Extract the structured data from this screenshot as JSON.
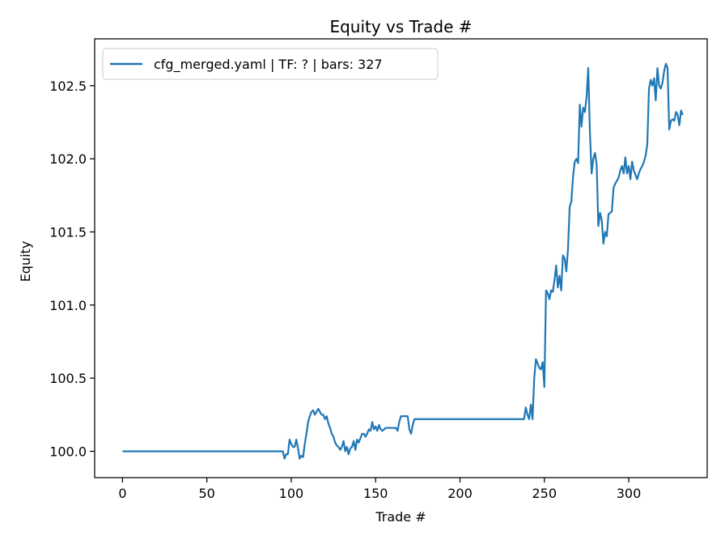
{
  "chart_data": {
    "type": "line",
    "title": "Equity vs Trade #",
    "xlabel": "Trade #",
    "ylabel": "Equity",
    "xlim": [
      -16.5,
      346.5
    ],
    "ylim": [
      99.82,
      102.82
    ],
    "xticks": [
      0,
      50,
      100,
      150,
      200,
      250,
      300
    ],
    "yticks": [
      100.0,
      100.5,
      101.0,
      101.5,
      102.0,
      102.5
    ],
    "ytick_labels": [
      "100.0",
      "100.5",
      "101.0",
      "101.5",
      "102.0",
      "102.5"
    ],
    "grid": false,
    "legend_position": "top-left",
    "series": [
      {
        "name": "cfg_merged.yaml | TF: ? | bars: 327",
        "color": "#1f77b4",
        "points": [
          [
            0,
            100.0
          ],
          [
            95,
            100.0
          ],
          [
            96,
            99.95
          ],
          [
            97,
            99.98
          ],
          [
            98,
            99.98
          ],
          [
            99,
            100.08
          ],
          [
            100,
            100.05
          ],
          [
            101,
            100.03
          ],
          [
            102,
            100.03
          ],
          [
            103,
            100.08
          ],
          [
            104,
            100.02
          ],
          [
            105,
            99.95
          ],
          [
            106,
            99.97
          ],
          [
            107,
            99.96
          ],
          [
            108,
            100.05
          ],
          [
            109,
            100.12
          ],
          [
            110,
            100.2
          ],
          [
            111,
            100.24
          ],
          [
            112,
            100.27
          ],
          [
            113,
            100.28
          ],
          [
            114,
            100.25
          ],
          [
            115,
            100.27
          ],
          [
            116,
            100.29
          ],
          [
            117,
            100.27
          ],
          [
            118,
            100.25
          ],
          [
            119,
            100.25
          ],
          [
            120,
            100.22
          ],
          [
            121,
            100.24
          ],
          [
            122,
            100.19
          ],
          [
            123,
            100.16
          ],
          [
            124,
            100.12
          ],
          [
            125,
            100.1
          ],
          [
            126,
            100.06
          ],
          [
            127,
            100.04
          ],
          [
            128,
            100.03
          ],
          [
            129,
            100.01
          ],
          [
            130,
            100.03
          ],
          [
            131,
            100.07
          ],
          [
            132,
            100.0
          ],
          [
            133,
            100.03
          ],
          [
            134,
            99.98
          ],
          [
            135,
            100.02
          ],
          [
            136,
            100.03
          ],
          [
            137,
            100.07
          ],
          [
            138,
            100.01
          ],
          [
            139,
            100.08
          ],
          [
            140,
            100.06
          ],
          [
            141,
            100.09
          ],
          [
            142,
            100.12
          ],
          [
            143,
            100.12
          ],
          [
            144,
            100.1
          ],
          [
            145,
            100.12
          ],
          [
            146,
            100.15
          ],
          [
            147,
            100.14
          ],
          [
            148,
            100.2
          ],
          [
            149,
            100.15
          ],
          [
            150,
            100.17
          ],
          [
            151,
            100.14
          ],
          [
            152,
            100.18
          ],
          [
            153,
            100.15
          ],
          [
            154,
            100.14
          ],
          [
            155,
            100.15
          ],
          [
            156,
            100.16
          ],
          [
            162,
            100.16
          ],
          [
            163,
            100.14
          ],
          [
            164,
            100.2
          ],
          [
            165,
            100.24
          ],
          [
            169,
            100.24
          ],
          [
            170,
            100.15
          ],
          [
            171,
            100.12
          ],
          [
            172,
            100.18
          ],
          [
            173,
            100.22
          ],
          [
            238,
            100.22
          ],
          [
            239,
            100.3
          ],
          [
            240,
            100.25
          ],
          [
            241,
            100.22
          ],
          [
            242,
            100.32
          ],
          [
            243,
            100.22
          ],
          [
            244,
            100.5
          ],
          [
            245,
            100.63
          ],
          [
            246,
            100.6
          ],
          [
            247,
            100.57
          ],
          [
            248,
            100.56
          ],
          [
            249,
            100.61
          ],
          [
            250,
            100.44
          ],
          [
            251,
            101.1
          ],
          [
            252,
            101.08
          ],
          [
            253,
            101.04
          ],
          [
            254,
            101.1
          ],
          [
            255,
            101.09
          ],
          [
            256,
            101.17
          ],
          [
            257,
            101.27
          ],
          [
            258,
            101.12
          ],
          [
            259,
            101.2
          ],
          [
            260,
            101.1
          ],
          [
            261,
            101.34
          ],
          [
            262,
            101.32
          ],
          [
            263,
            101.23
          ],
          [
            264,
            101.38
          ],
          [
            265,
            101.67
          ],
          [
            266,
            101.71
          ],
          [
            267,
            101.88
          ],
          [
            268,
            101.98
          ],
          [
            269,
            102.0
          ],
          [
            270,
            101.97
          ],
          [
            271,
            102.37
          ],
          [
            272,
            102.22
          ],
          [
            273,
            102.35
          ],
          [
            274,
            102.32
          ],
          [
            275,
            102.42
          ],
          [
            276,
            102.62
          ],
          [
            277,
            102.18
          ],
          [
            278,
            101.9
          ],
          [
            279,
            102.0
          ],
          [
            280,
            102.04
          ],
          [
            281,
            101.96
          ],
          [
            282,
            101.54
          ],
          [
            283,
            101.63
          ],
          [
            284,
            101.58
          ],
          [
            285,
            101.42
          ],
          [
            286,
            101.5
          ],
          [
            287,
            101.47
          ],
          [
            288,
            101.62
          ],
          [
            289,
            101.63
          ],
          [
            290,
            101.64
          ],
          [
            291,
            101.8
          ],
          [
            292,
            101.83
          ],
          [
            293,
            101.85
          ],
          [
            294,
            101.87
          ],
          [
            295,
            101.92
          ],
          [
            296,
            101.95
          ],
          [
            297,
            101.9
          ],
          [
            298,
            102.01
          ],
          [
            299,
            101.9
          ],
          [
            300,
            101.95
          ],
          [
            301,
            101.86
          ],
          [
            302,
            101.98
          ],
          [
            303,
            101.92
          ],
          [
            304,
            101.89
          ],
          [
            305,
            101.86
          ],
          [
            306,
            101.9
          ],
          [
            307,
            101.93
          ],
          [
            308,
            101.95
          ],
          [
            309,
            101.98
          ],
          [
            310,
            102.02
          ],
          [
            311,
            102.1
          ],
          [
            312,
            102.48
          ],
          [
            313,
            102.54
          ],
          [
            314,
            102.5
          ],
          [
            315,
            102.55
          ],
          [
            316,
            102.4
          ],
          [
            317,
            102.62
          ],
          [
            318,
            102.5
          ],
          [
            319,
            102.48
          ],
          [
            320,
            102.52
          ],
          [
            321,
            102.6
          ],
          [
            322,
            102.65
          ],
          [
            323,
            102.62
          ],
          [
            324,
            102.2
          ],
          [
            325,
            102.26
          ],
          [
            326,
            102.27
          ],
          [
            327,
            102.26
          ],
          [
            328,
            102.32
          ],
          [
            329,
            102.3
          ],
          [
            330,
            102.23
          ],
          [
            331,
            102.33
          ],
          [
            332,
            102.3
          ]
        ]
      }
    ]
  }
}
